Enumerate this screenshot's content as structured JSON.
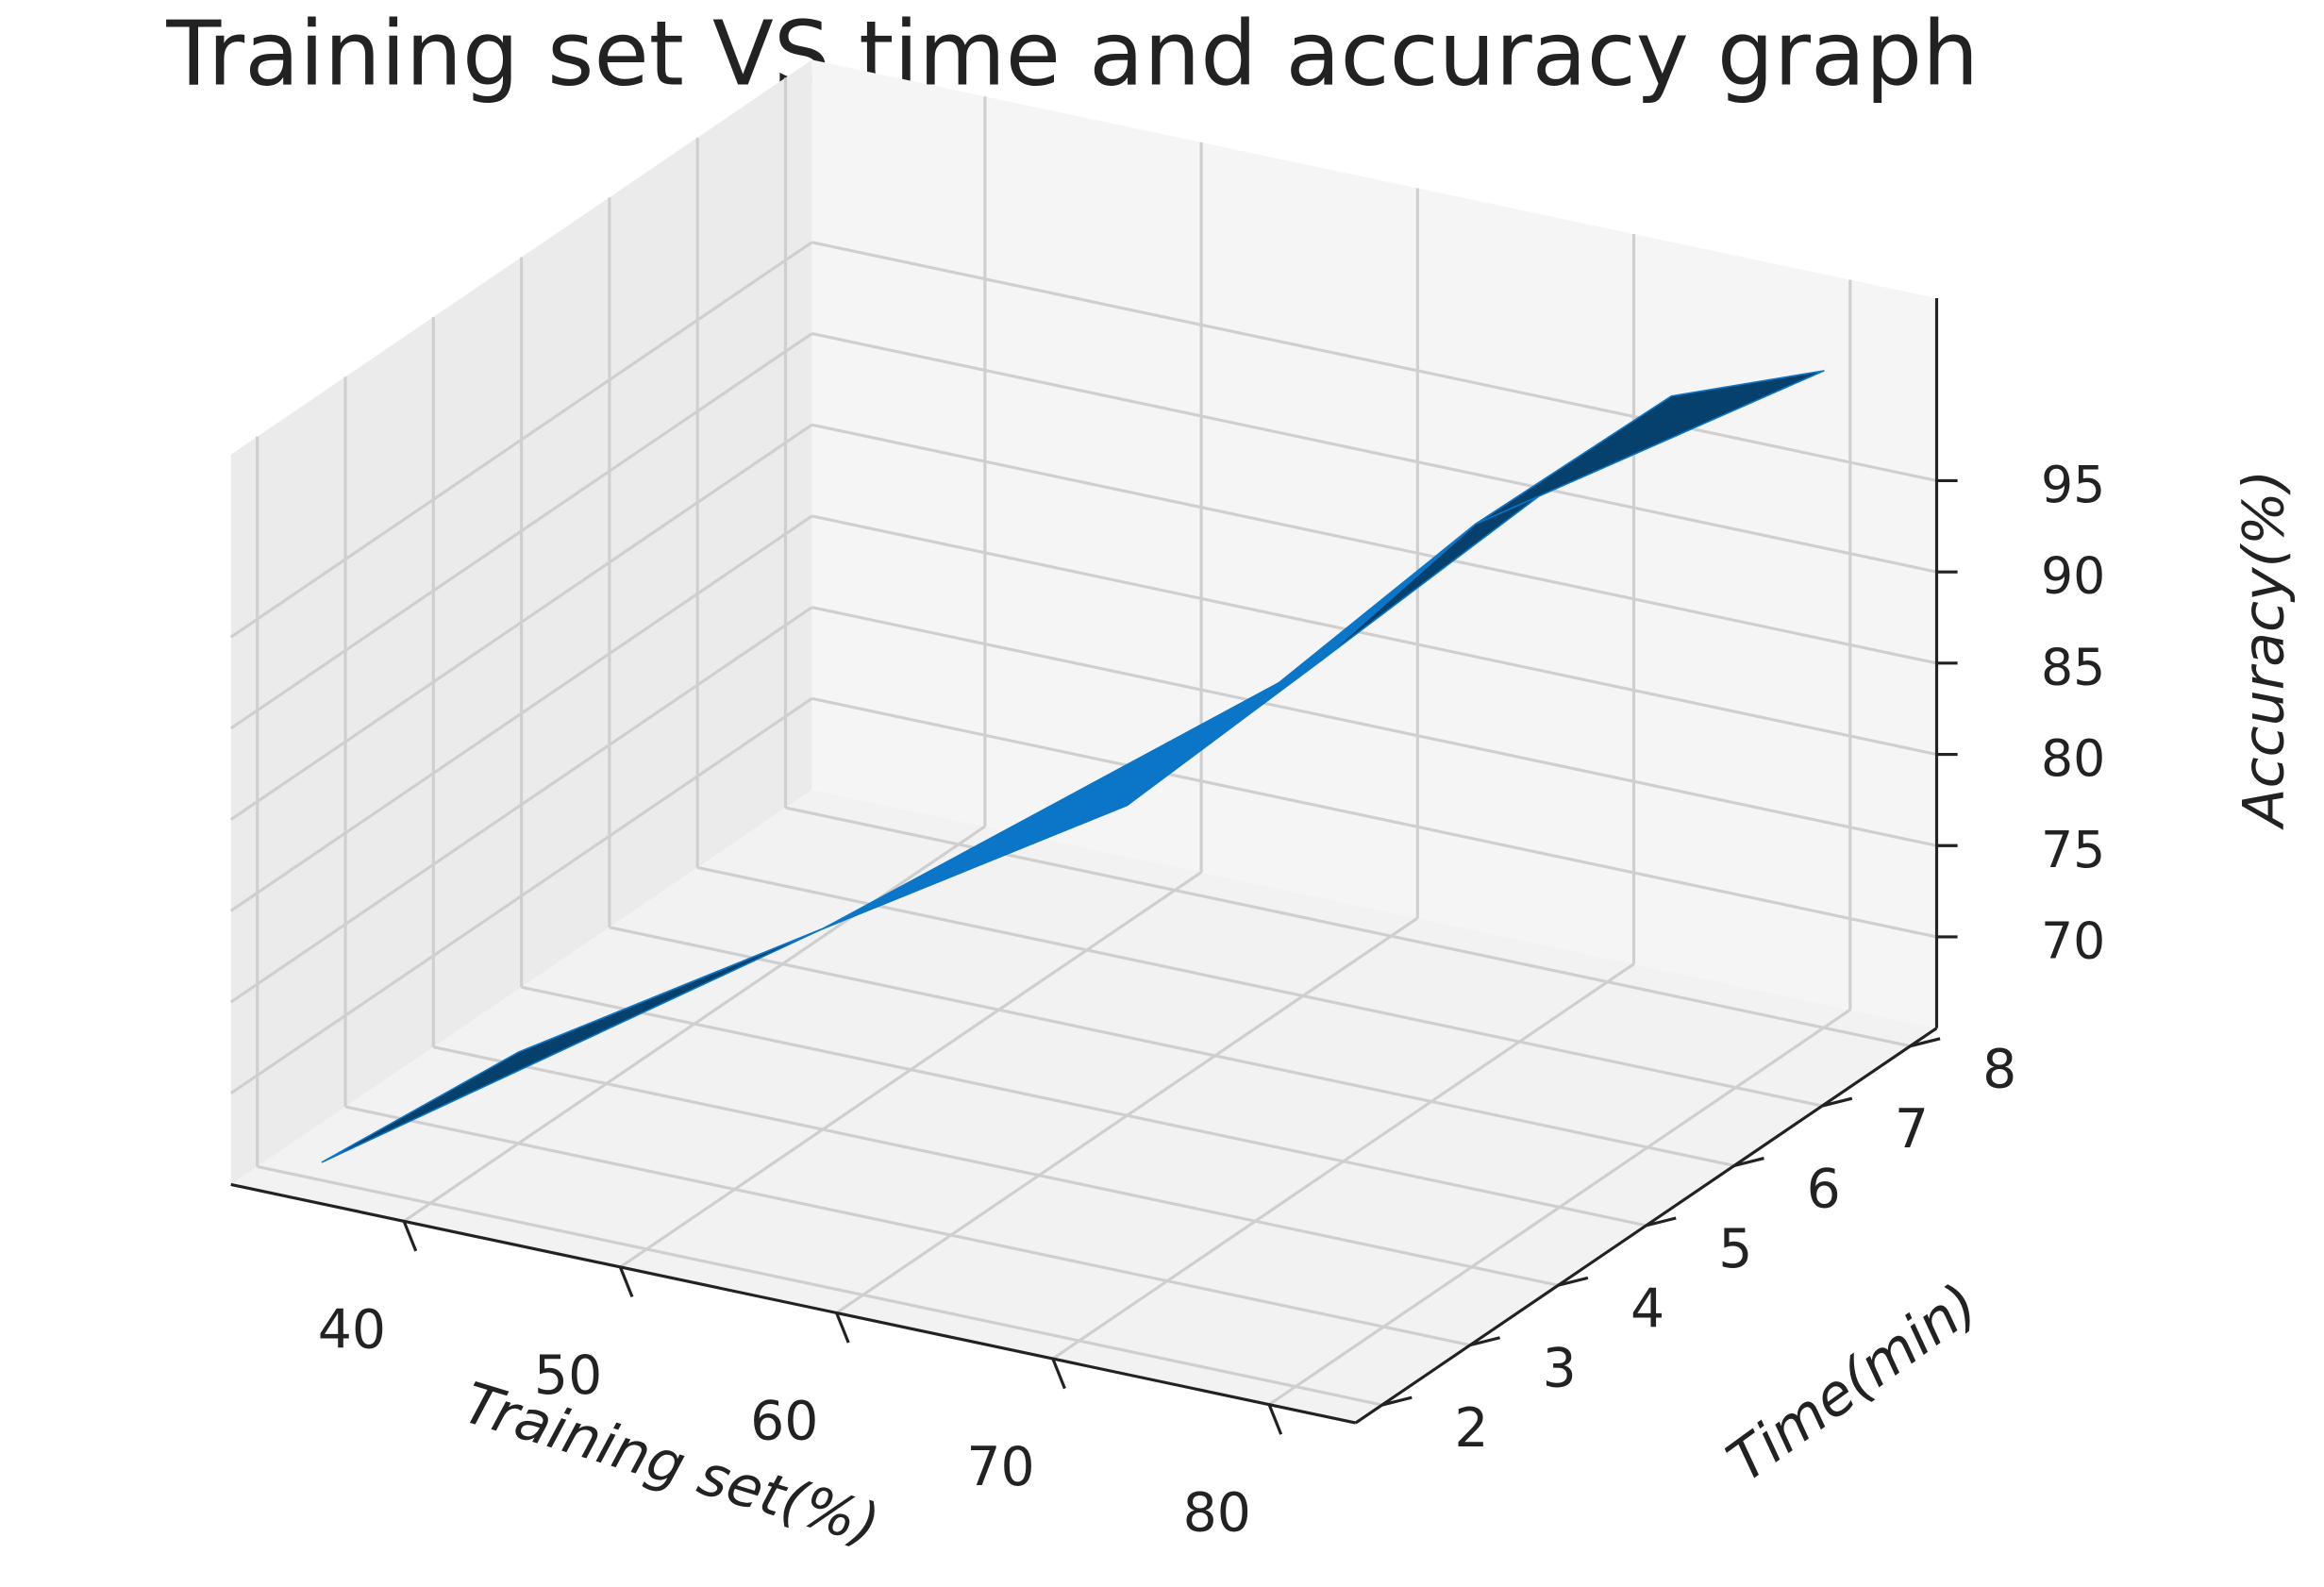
{
  "chart_data": {
    "type": "surface3d",
    "title": "Training set VS time and accuracy graph",
    "x_label": "Training set(%)",
    "y_label": "Time(min)",
    "z_label": "Accuracy(%)",
    "x": [
      35,
      40,
      50,
      60,
      65,
      70,
      75,
      80
    ],
    "y": [
      2,
      3,
      4,
      5,
      6,
      6.5,
      7.5,
      8
    ],
    "z": [
      66,
      70,
      76,
      82,
      88,
      95,
      100,
      101
    ],
    "color": "#0b76c8",
    "xlim": [
      32,
      84
    ],
    "xticks": [
      40,
      50,
      60,
      70,
      80
    ],
    "ylim": [
      1.7,
      8.3
    ],
    "yticks": [
      2,
      3,
      4,
      5,
      6,
      7,
      8
    ],
    "zlim": [
      65,
      105
    ],
    "zticks": [
      70,
      75,
      80,
      85,
      90,
      95
    ],
    "grid": true
  }
}
